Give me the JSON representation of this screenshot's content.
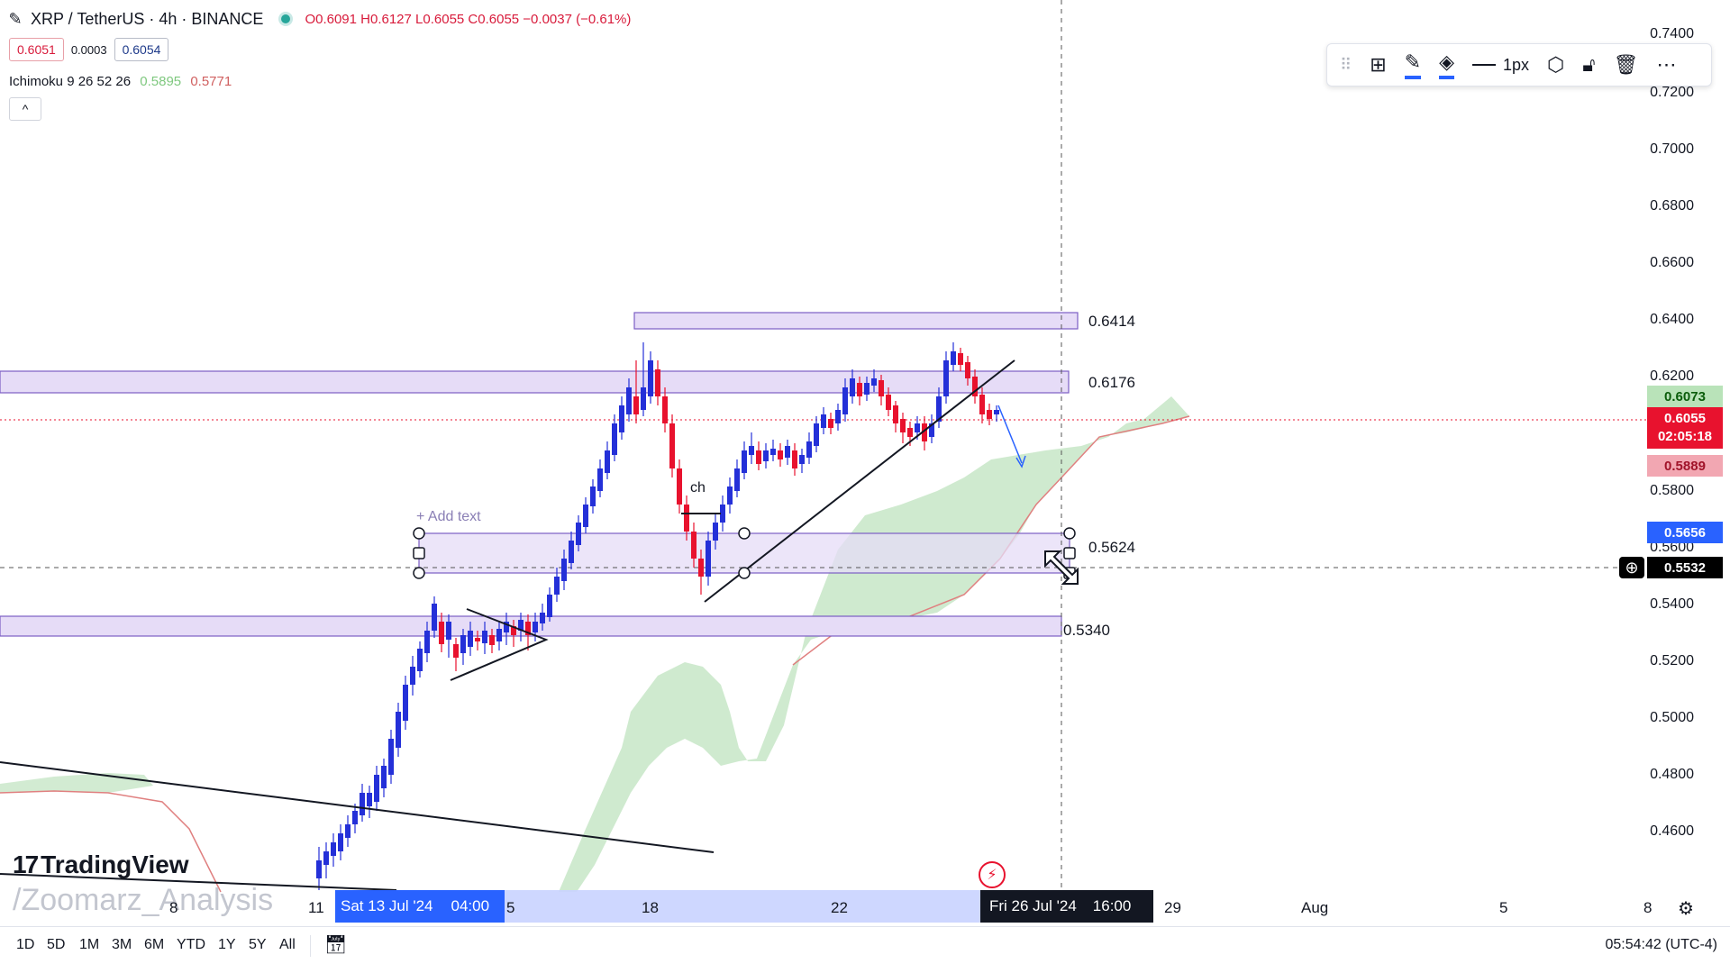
{
  "header": {
    "symbol": "XRP / TetherUS · 4h · BINANCE",
    "ohlc": "O0.6091 H0.6127 L0.6055 C0.6055 −0.0037 (−0.61%)"
  },
  "quote": {
    "sell": "0.6051",
    "spread": "0.0003",
    "buy": "0.6054"
  },
  "indicator": {
    "name": "Ichimoku 9 26 52 26",
    "v1": "0.5895",
    "v2": "0.5771"
  },
  "collapse_label": "^",
  "toolbar": {
    "width_label": "1px"
  },
  "price_axis": [
    "0.7400",
    "0.7200",
    "0.7000",
    "0.6800",
    "0.6600",
    "0.6400",
    "0.6200",
    "0.5800",
    "0.5600",
    "0.5400",
    "0.5200",
    "0.5000",
    "0.4800",
    "0.4600"
  ],
  "price_tags": {
    "green": "0.6073",
    "red_price": "0.6055",
    "red_timer": "02:05:18",
    "pink": "0.5889",
    "blue": "0.5656",
    "cursor": "0.5532"
  },
  "levels": {
    "l1": "0.6414",
    "l2": "0.6176",
    "l3": "0.5624",
    "l4": "0.5340"
  },
  "annotations": {
    "add_text": "+ Add text",
    "ch": "ch"
  },
  "time_axis": {
    "labels": {
      "t8": "8",
      "t11": "11",
      "t15": "5",
      "t18": "18",
      "t22": "22",
      "t29": "29",
      "aug": "Aug",
      "t5": "5",
      "t8b": "8"
    },
    "cursor_left_date": "Sat 13 Jul '24",
    "cursor_left_time": "04:00",
    "cursor_right_date": "Fri 26 Jul '24",
    "cursor_right_time": "16:00"
  },
  "watermark": {
    "brand": "TradingView",
    "author": "/Zoomarz_Analysis"
  },
  "ranges": [
    "1D",
    "5D",
    "1M",
    "3M",
    "6M",
    "YTD",
    "1Y",
    "5Y",
    "All"
  ],
  "clock": "05:54:42 (UTC-4)",
  "colors": {
    "bull": "#2430d8",
    "bear": "#e8122e",
    "zone": "#e6dcf7",
    "cloud": "#c7e6c7"
  }
}
